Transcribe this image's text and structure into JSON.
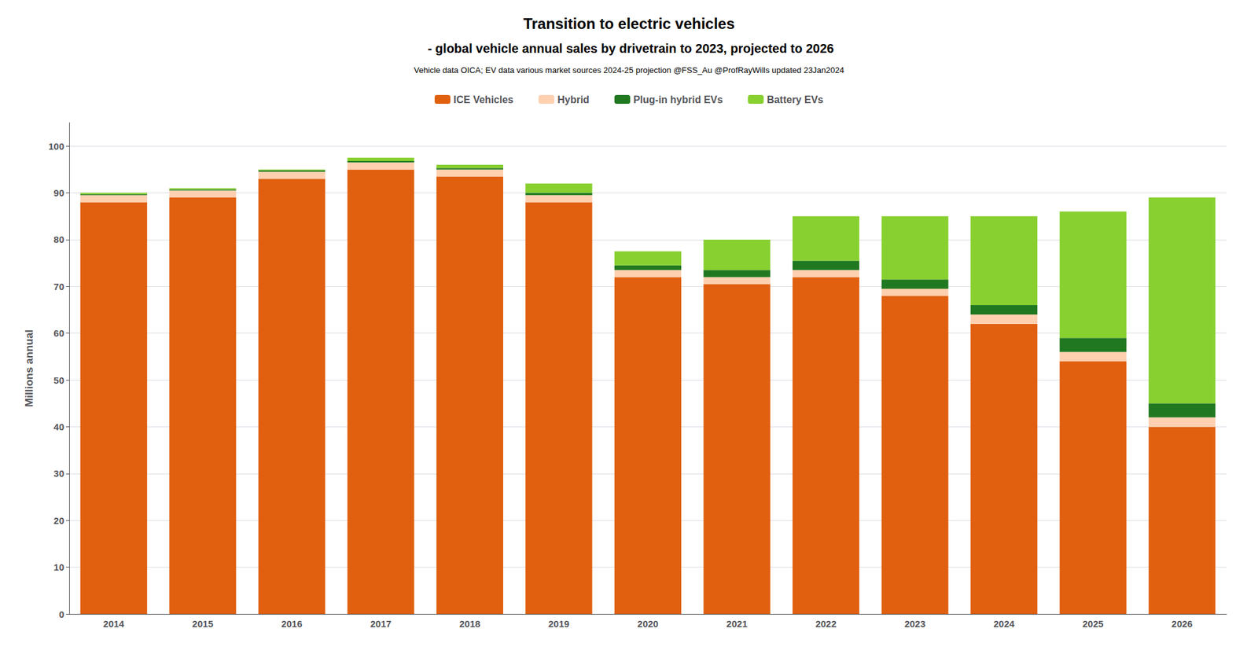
{
  "chart_data": {
    "type": "bar",
    "stacked": true,
    "title": "Transition to electric vehicles",
    "subtitle": " - global vehicle annual sales by drivetrain to 2023, projected to 2026",
    "annotations": [
      "Vehicle data OICA; EV data various market sources 2024-25 projection @FSS_Au @ProfRayWills updated 23Jan2024"
    ],
    "ylabel": "Millions annual",
    "categories": [
      "2014",
      "2015",
      "2016",
      "2017",
      "2018",
      "2019",
      "2020",
      "2021",
      "2022",
      "2023",
      "2024",
      "2025",
      "2026"
    ],
    "series": [
      {
        "name": "ICE Vehicles",
        "color": "#e06010",
        "values": [
          88.0,
          89.0,
          93.0,
          95.0,
          93.5,
          88.0,
          72.0,
          70.5,
          72.0,
          68.0,
          62.0,
          54.0,
          40.0
        ]
      },
      {
        "name": "Hybrid",
        "color": "#ffd0b0",
        "values": [
          1.5,
          1.5,
          1.5,
          1.5,
          1.5,
          1.5,
          1.5,
          1.5,
          1.5,
          1.5,
          2.0,
          2.0,
          2.0
        ]
      },
      {
        "name": "Plug-in hybrid EVs",
        "color": "#207820",
        "values": [
          0.2,
          0.2,
          0.3,
          0.3,
          0.3,
          0.5,
          1.0,
          1.5,
          2.0,
          2.0,
          2.0,
          3.0,
          3.0
        ]
      },
      {
        "name": "Battery EVs",
        "color": "#88d030",
        "values": [
          0.3,
          0.3,
          0.2,
          0.7,
          0.7,
          2.0,
          3.0,
          6.5,
          9.5,
          13.5,
          19.0,
          27.0,
          44.0
        ]
      }
    ],
    "ylim": [
      0,
      105
    ],
    "yticks": [
      0,
      10,
      20,
      30,
      40,
      50,
      60,
      70,
      80,
      90,
      100
    ],
    "grid": true,
    "legend": "top"
  }
}
